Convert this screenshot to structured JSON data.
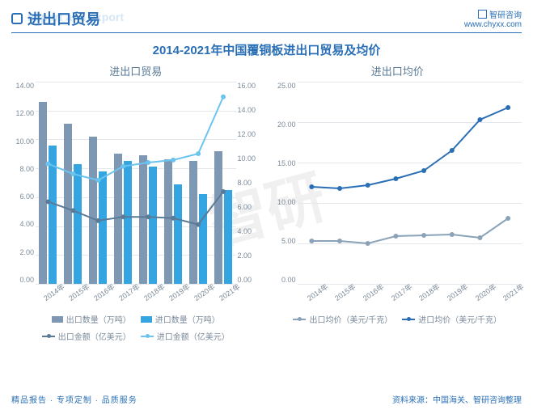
{
  "header": {
    "title_cn": "进出口贸易",
    "title_en": "Import and export",
    "brand": "智研咨询",
    "site": "www.chyxx.com"
  },
  "main_title": "2014-2021年中国覆铜板进出口贸易及均价",
  "footer": {
    "left": "精品报告 · 专项定制 · 品质服务",
    "right": "资料来源：中国海关、智研咨询整理"
  },
  "colors": {
    "brand_blue": "#2a6fb5",
    "grid": "#e4e8ec",
    "axis_text": "#7a8a99",
    "bar_export": "#7e98b3",
    "bar_import": "#34a5e0",
    "line_export_amt": "#5a7a96",
    "line_import_amt": "#6bc4ef",
    "line_export_price": "#8aa3b8",
    "line_import_price": "#2a6fb5",
    "background": "#ffffff"
  },
  "left_chart": {
    "subtitle": "进出口贸易",
    "x_labels": [
      "2014年",
      "2015年",
      "2016年",
      "2017年",
      "2018年",
      "2019年",
      "2020年",
      "2021年"
    ],
    "y_left": {
      "min": 0,
      "max": 14,
      "step": 2,
      "decimals": 2
    },
    "y_right": {
      "min": 0,
      "max": 16,
      "step": 2,
      "decimals": 2
    },
    "bars": {
      "export_qty": [
        12.6,
        11.1,
        10.2,
        9.0,
        8.9,
        8.6,
        8.5,
        9.2
      ],
      "import_qty": [
        9.6,
        8.3,
        7.8,
        8.5,
        8.1,
        6.9,
        6.2,
        6.5
      ]
    },
    "lines": {
      "export_amt": [
        6.5,
        5.8,
        5.0,
        5.3,
        5.3,
        5.2,
        4.7,
        7.3
      ],
      "import_amt": [
        9.5,
        8.7,
        8.2,
        9.3,
        9.6,
        9.8,
        10.3,
        14.8
      ]
    },
    "legend": [
      {
        "type": "box",
        "colorKey": "bar_export",
        "label": "出口数量（万吨）"
      },
      {
        "type": "box",
        "colorKey": "bar_import",
        "label": "进口数量（万吨）"
      },
      {
        "type": "line",
        "colorKey": "line_export_amt",
        "label": "出口金额（亿美元）"
      },
      {
        "type": "line",
        "colorKey": "line_import_amt",
        "label": "进口金额（亿美元）"
      }
    ]
  },
  "right_chart": {
    "subtitle": "进出口均价",
    "x_labels": [
      "2014年",
      "2015年",
      "2016年",
      "2017年",
      "2018年",
      "2019年",
      "2020年",
      "2021年"
    ],
    "y_left": {
      "min": 0,
      "max": 25,
      "step": 5,
      "decimals": 2
    },
    "lines": {
      "export_price": [
        5.3,
        5.3,
        5.0,
        5.9,
        6.0,
        6.1,
        5.7,
        8.1
      ],
      "import_price": [
        12.0,
        11.8,
        12.2,
        13.0,
        14.0,
        16.5,
        20.3,
        21.8
      ]
    },
    "legend": [
      {
        "type": "line",
        "colorKey": "line_export_price",
        "label": "出口均价（美元/千克）"
      },
      {
        "type": "line",
        "colorKey": "line_import_price",
        "label": "进口均价（美元/千克）"
      }
    ]
  }
}
